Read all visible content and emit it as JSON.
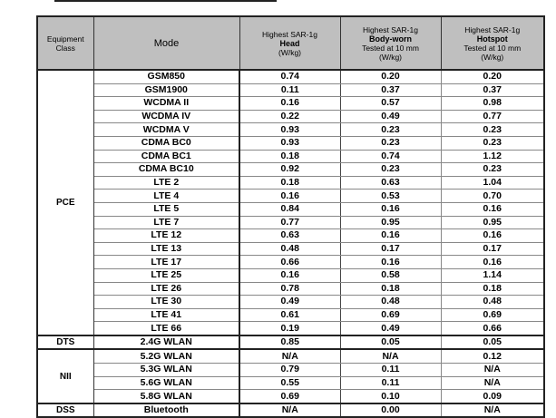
{
  "headers": {
    "class": [
      "Equipment",
      "Class"
    ],
    "mode": "Mode",
    "head": [
      "Highest SAR-1g",
      "Head",
      "(W/kg)"
    ],
    "body": [
      "Highest SAR-1g",
      "Body-worn",
      "Tested at 10 mm",
      "(W/kg)"
    ],
    "hotspot": [
      "Highest SAR-1g",
      "Hotspot",
      "Tested at 10 mm",
      "(W/kg)"
    ]
  },
  "groups": [
    {
      "class": "PCE",
      "rows": [
        [
          "GSM850",
          "0.74",
          "0.20",
          "0.20"
        ],
        [
          "GSM1900",
          "0.11",
          "0.37",
          "0.37"
        ],
        [
          "WCDMA II",
          "0.16",
          "0.57",
          "0.98"
        ],
        [
          "WCDMA IV",
          "0.22",
          "0.49",
          "0.77"
        ],
        [
          "WCDMA V",
          "0.93",
          "0.23",
          "0.23"
        ],
        [
          "CDMA BC0",
          "0.93",
          "0.23",
          "0.23"
        ],
        [
          "CDMA BC1",
          "0.18",
          "0.74",
          "1.12"
        ],
        [
          "CDMA BC10",
          "0.92",
          "0.23",
          "0.23"
        ],
        [
          "LTE 2",
          "0.18",
          "0.63",
          "1.04"
        ],
        [
          "LTE 4",
          "0.16",
          "0.53",
          "0.70"
        ],
        [
          "LTE 5",
          "0.84",
          "0.16",
          "0.16"
        ],
        [
          "LTE 7",
          "0.77",
          "0.95",
          "0.95"
        ],
        [
          "LTE 12",
          "0.63",
          "0.16",
          "0.16"
        ],
        [
          "LTE 13",
          "0.48",
          "0.17",
          "0.17"
        ],
        [
          "LTE 17",
          "0.66",
          "0.16",
          "0.16"
        ],
        [
          "LTE 25",
          "0.16",
          "0.58",
          "1.14"
        ],
        [
          "LTE 26",
          "0.78",
          "0.18",
          "0.18"
        ],
        [
          "LTE 30",
          "0.49",
          "0.48",
          "0.48"
        ],
        [
          "LTE 41",
          "0.61",
          "0.69",
          "0.69"
        ],
        [
          "LTE 66",
          "0.19",
          "0.49",
          "0.66"
        ]
      ]
    },
    {
      "class": "DTS",
      "rows": [
        [
          "2.4G WLAN",
          "0.85",
          "0.05",
          "0.05"
        ]
      ]
    },
    {
      "class": "NII",
      "rows": [
        [
          "5.2G WLAN",
          "N/A",
          "N/A",
          "0.12"
        ],
        [
          "5.3G WLAN",
          "0.79",
          "0.11",
          "N/A"
        ],
        [
          "5.6G WLAN",
          "0.55",
          "0.11",
          "N/A"
        ],
        [
          "5.8G WLAN",
          "0.69",
          "0.10",
          "0.09"
        ]
      ]
    },
    {
      "class": "DSS",
      "rows": [
        [
          "Bluetooth",
          "N/A",
          "0.00",
          "N/A"
        ]
      ]
    }
  ]
}
